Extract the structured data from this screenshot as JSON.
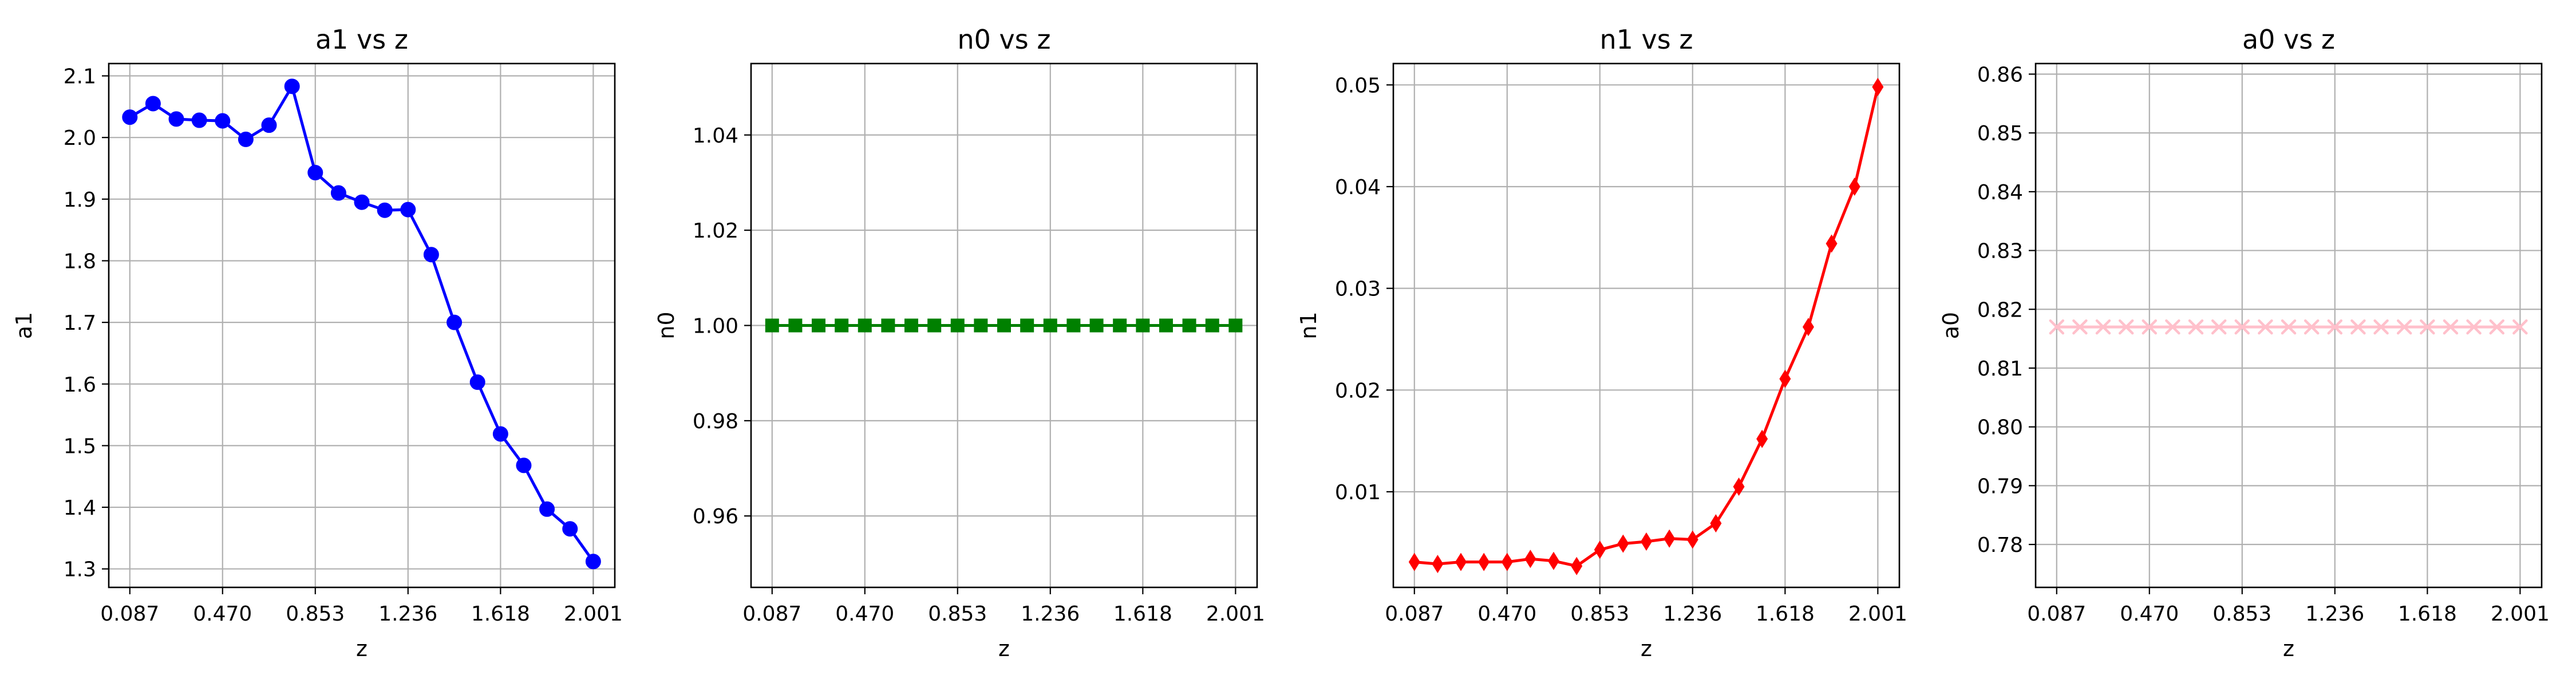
{
  "chart_data": [
    {
      "type": "line",
      "title": "a1 vs z",
      "xlabel": "z",
      "ylabel": "a1",
      "x_ticks": [
        "0.087",
        "0.470",
        "0.853",
        "1.236",
        "1.618",
        "2.001"
      ],
      "y_ticks": [
        "1.3",
        "1.4",
        "1.5",
        "1.6",
        "1.7",
        "1.8",
        "1.9",
        "2.0",
        "2.1"
      ],
      "xlim": [
        0.0,
        2.09
      ],
      "ylim": [
        1.27,
        2.12
      ],
      "grid": true,
      "series": [
        {
          "color": "#0000ff",
          "marker": "circle",
          "x": [
            0.087,
            0.183,
            0.279,
            0.374,
            0.47,
            0.566,
            0.662,
            0.757,
            0.853,
            0.949,
            1.045,
            1.14,
            1.236,
            1.332,
            1.427,
            1.523,
            1.618,
            1.714,
            1.81,
            1.905,
            2.001
          ],
          "y": [
            2.033,
            2.055,
            2.03,
            2.028,
            2.027,
            1.997,
            2.02,
            2.083,
            1.943,
            1.91,
            1.895,
            1.882,
            1.883,
            1.81,
            1.7,
            1.603,
            1.519,
            1.468,
            1.397,
            1.365,
            1.312
          ]
        }
      ]
    },
    {
      "type": "line",
      "title": "n0 vs z",
      "xlabel": "z",
      "ylabel": "n0",
      "x_ticks": [
        "0.087",
        "0.470",
        "0.853",
        "1.236",
        "1.618",
        "2.001"
      ],
      "y_ticks": [
        "0.96",
        "0.98",
        "1.00",
        "1.02",
        "1.04"
      ],
      "xlim": [
        0.0,
        2.09
      ],
      "ylim": [
        0.945,
        1.055
      ],
      "grid": true,
      "series": [
        {
          "color": "#008000",
          "marker": "square",
          "x": [
            0.087,
            0.183,
            0.279,
            0.374,
            0.47,
            0.566,
            0.662,
            0.757,
            0.853,
            0.949,
            1.045,
            1.14,
            1.236,
            1.332,
            1.427,
            1.523,
            1.618,
            1.714,
            1.81,
            1.905,
            2.001
          ],
          "y": [
            1.0,
            1.0,
            1.0,
            1.0,
            1.0,
            1.0,
            1.0,
            1.0,
            1.0,
            1.0,
            1.0,
            1.0,
            1.0,
            1.0,
            1.0,
            1.0,
            1.0,
            1.0,
            1.0,
            1.0,
            1.0
          ]
        }
      ]
    },
    {
      "type": "line",
      "title": "n1 vs z",
      "xlabel": "z",
      "ylabel": "n1",
      "x_ticks": [
        "0.087",
        "0.470",
        "0.853",
        "1.236",
        "1.618",
        "2.001"
      ],
      "y_ticks": [
        "0.01",
        "0.02",
        "0.03",
        "0.04",
        "0.05"
      ],
      "xlim": [
        0.0,
        2.09
      ],
      "ylim": [
        0.0006,
        0.0521
      ],
      "grid": true,
      "series": [
        {
          "color": "#ff0000",
          "marker": "diamond",
          "x": [
            0.087,
            0.183,
            0.279,
            0.374,
            0.47,
            0.566,
            0.662,
            0.757,
            0.853,
            0.949,
            1.045,
            1.14,
            1.236,
            1.332,
            1.427,
            1.523,
            1.618,
            1.714,
            1.81,
            1.905,
            2.001
          ],
          "y": [
            0.0031,
            0.0029,
            0.0031,
            0.0031,
            0.0031,
            0.0034,
            0.0032,
            0.0027,
            0.0043,
            0.0049,
            0.0051,
            0.0054,
            0.0053,
            0.0069,
            0.0105,
            0.0152,
            0.0211,
            0.0262,
            0.0344,
            0.04,
            0.0498
          ]
        }
      ]
    },
    {
      "type": "line",
      "title": "a0 vs z",
      "xlabel": "z",
      "ylabel": "a0",
      "x_ticks": [
        "0.087",
        "0.470",
        "0.853",
        "1.236",
        "1.618",
        "2.001"
      ],
      "y_ticks": [
        "0.78",
        "0.79",
        "0.80",
        "0.81",
        "0.82",
        "0.83",
        "0.84",
        "0.85",
        "0.86"
      ],
      "xlim": [
        0.0,
        2.09
      ],
      "ylim": [
        0.7727,
        0.8618
      ],
      "grid": true,
      "series": [
        {
          "color": "#ffc0cb",
          "marker": "x",
          "x": [
            0.087,
            0.183,
            0.279,
            0.374,
            0.47,
            0.566,
            0.662,
            0.757,
            0.853,
            0.949,
            1.045,
            1.14,
            1.236,
            1.332,
            1.427,
            1.523,
            1.618,
            1.714,
            1.81,
            1.905,
            2.001
          ],
          "y": [
            0.817,
            0.817,
            0.817,
            0.817,
            0.817,
            0.817,
            0.817,
            0.817,
            0.817,
            0.817,
            0.817,
            0.817,
            0.817,
            0.817,
            0.817,
            0.817,
            0.817,
            0.817,
            0.817,
            0.817,
            0.817
          ]
        }
      ]
    }
  ]
}
